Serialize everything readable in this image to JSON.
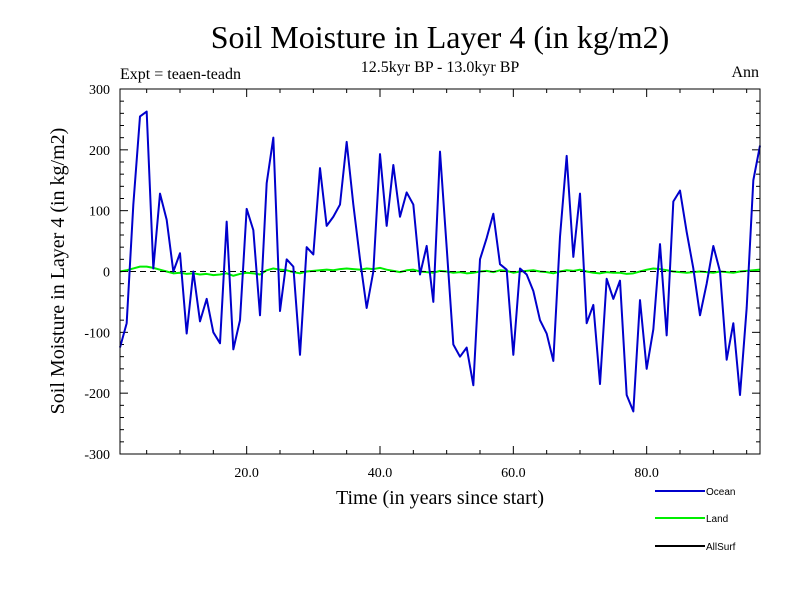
{
  "chart_data": {
    "type": "line",
    "title": "Soil Moisture in Layer 4 (in kg/m2)",
    "subtitle": "12.5kyr BP - 13.0kyr BP",
    "left_label": "Expt = teaen-teadn",
    "right_label": "Ann",
    "xlabel": "Time (in years since start)",
    "ylabel": "Soil Moisture in Layer 4 (in kg/m2)",
    "xlim": [
      1,
      97
    ],
    "ylim": [
      -300,
      300
    ],
    "xticks": [
      20,
      40,
      60,
      80
    ],
    "xtick_labels": [
      "20.0",
      "40.0",
      "60.0",
      "80.0"
    ],
    "yticks": [
      300,
      200,
      100,
      0,
      -100,
      -200,
      -300
    ],
    "ytick_labels": [
      "300",
      "200",
      "100",
      "0",
      "-100",
      "-200",
      "-300"
    ],
    "legend_position": "bottom-right",
    "series": [
      {
        "name": "Ocean",
        "color": "#0000cc",
        "x": [
          1,
          2,
          3,
          4,
          5,
          6,
          7,
          8,
          9,
          10,
          11,
          12,
          13,
          14,
          15,
          16,
          17,
          18,
          19,
          20,
          21,
          22,
          23,
          24,
          25,
          26,
          27,
          28,
          29,
          30,
          31,
          32,
          33,
          34,
          35,
          36,
          37,
          38,
          39,
          40,
          41,
          42,
          43,
          44,
          45,
          46,
          47,
          48,
          49,
          50,
          51,
          52,
          53,
          54,
          55,
          56,
          57,
          58,
          59,
          60,
          61,
          62,
          63,
          64,
          65,
          66,
          67,
          68,
          69,
          70,
          71,
          72,
          73,
          74,
          75,
          76,
          77,
          78,
          79,
          80,
          81,
          82,
          83,
          84,
          85,
          86,
          87,
          88,
          89,
          90,
          91,
          92,
          93,
          94,
          95,
          96,
          97
        ],
        "values": [
          -125,
          -85,
          110,
          255,
          263,
          5,
          128,
          85,
          0,
          30,
          -102,
          0,
          -82,
          -45,
          -100,
          -118,
          82,
          -128,
          -80,
          103,
          68,
          -72,
          145,
          220,
          -65,
          20,
          8,
          -137,
          40,
          28,
          170,
          75,
          90,
          110,
          213,
          110,
          20,
          -60,
          0,
          193,
          75,
          175,
          90,
          130,
          110,
          -5,
          42,
          -50,
          197,
          40,
          -120,
          -140,
          -125,
          -187,
          20,
          55,
          95,
          12,
          3,
          -137,
          5,
          -5,
          -32,
          -80,
          -102,
          -147,
          57,
          190,
          24,
          128,
          -85,
          -55,
          -185,
          -12,
          -45,
          -15,
          -203,
          -230,
          -47,
          -160,
          -95,
          45,
          -105,
          115,
          133,
          65,
          5,
          -72,
          -20,
          42,
          0,
          -145,
          -85,
          -203,
          -60,
          150,
          207
        ]
      },
      {
        "name": "Land",
        "color": "#00ee00",
        "x": [
          1,
          2,
          3,
          4,
          5,
          6,
          7,
          8,
          9,
          10,
          11,
          12,
          13,
          14,
          15,
          16,
          17,
          18,
          19,
          20,
          21,
          22,
          23,
          24,
          25,
          26,
          27,
          28,
          29,
          30,
          31,
          32,
          33,
          34,
          35,
          36,
          37,
          38,
          39,
          40,
          41,
          42,
          43,
          44,
          45,
          46,
          47,
          48,
          49,
          50,
          51,
          52,
          53,
          54,
          55,
          56,
          57,
          58,
          59,
          60,
          61,
          62,
          63,
          64,
          65,
          66,
          67,
          68,
          69,
          70,
          71,
          72,
          73,
          74,
          75,
          76,
          77,
          78,
          79,
          80,
          81,
          82,
          83,
          84,
          85,
          86,
          87,
          88,
          89,
          90,
          91,
          92,
          93,
          94,
          95,
          96,
          97
        ],
        "values": [
          0,
          2,
          5,
          8,
          8,
          6,
          3,
          0,
          -3,
          -2,
          -4,
          -3,
          -5,
          -4,
          -6,
          -5,
          -3,
          -7,
          -4,
          -2,
          -3,
          -5,
          2,
          5,
          3,
          2,
          -1,
          -3,
          0,
          1,
          2,
          3,
          2,
          4,
          5,
          4,
          3,
          5,
          4,
          6,
          3,
          1,
          -1,
          2,
          3,
          0,
          -1,
          -2,
          1,
          0,
          -2,
          -1,
          -3,
          -2,
          0,
          1,
          -1,
          2,
          1,
          -2,
          0,
          1,
          2,
          0,
          -1,
          -3,
          0,
          2,
          1,
          3,
          0,
          -2,
          -3,
          -1,
          -2,
          -2,
          -4,
          -3,
          0,
          3,
          5,
          4,
          2,
          0,
          -1,
          -2,
          -1,
          0,
          -1,
          -2,
          0,
          -1,
          -2,
          0,
          1,
          2,
          3
        ]
      },
      {
        "name": "AllSurf",
        "color": "#000000",
        "x": [
          1,
          97
        ],
        "values": [
          0,
          0
        ]
      }
    ]
  }
}
